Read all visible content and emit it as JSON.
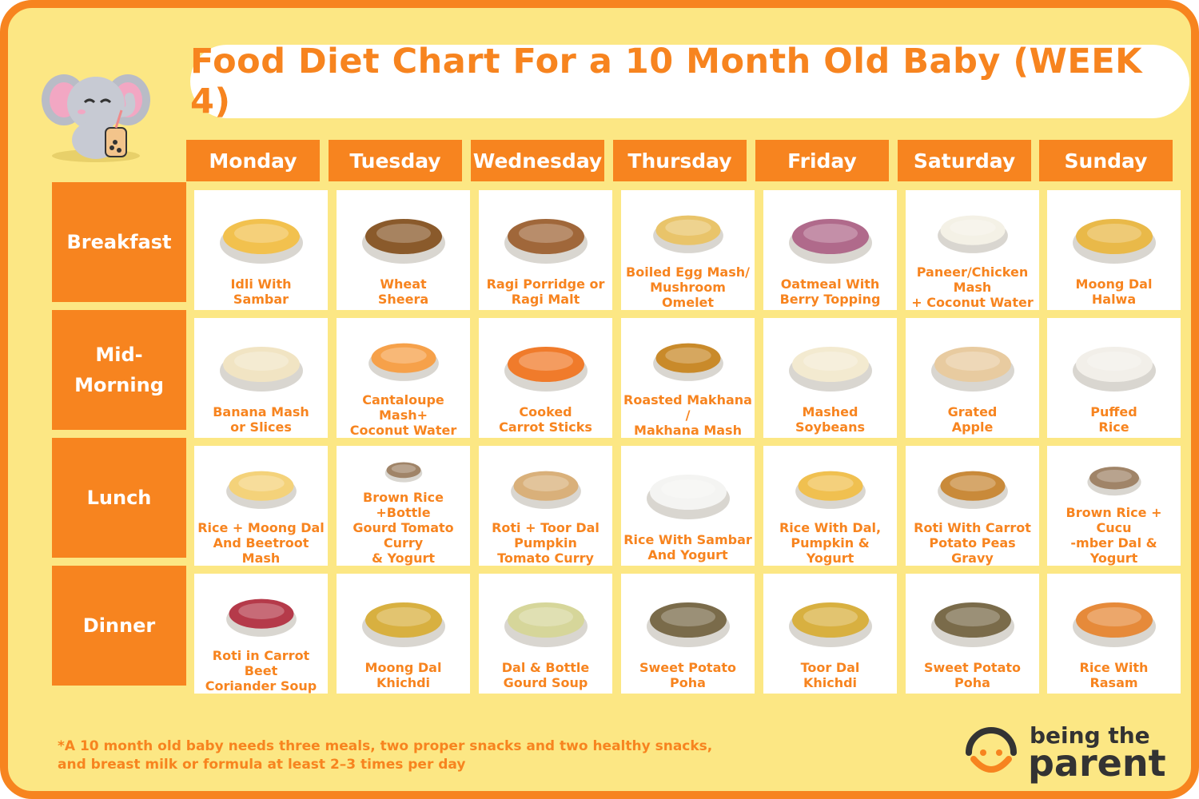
{
  "title": "Food Diet Chart For a 10 Month Old Baby (WEEK 4)",
  "colors": {
    "accent": "#f7841f",
    "background": "#fce784",
    "cell": "#ffffff"
  },
  "days": [
    "Monday",
    "Tuesday",
    "Wednesday",
    "Thursday",
    "Friday",
    "Saturday",
    "Sunday"
  ],
  "meals": [
    {
      "name": "Breakfast",
      "items": [
        "Idli With\nSambar",
        "Wheat\nSheera",
        "Ragi Porridge or\nRagi Malt",
        "Boiled Egg Mash/\nMushroom Omelet",
        "Oatmeal With\nBerry Topping",
        "Paneer/Chicken Mash\n+ Coconut Water",
        "Moong Dal\nHalwa"
      ]
    },
    {
      "name": "Mid-\nMorning",
      "items": [
        "Banana Mash\nor Slices",
        "Cantaloupe Mash+\nCoconut Water",
        "Cooked\nCarrot Sticks",
        "Roasted Makhana /\nMakhana Mash",
        "Mashed\nSoybeans",
        "Grated\nApple",
        "Puffed\nRice"
      ]
    },
    {
      "name": "Lunch",
      "items": [
        "Rice + Moong Dal\nAnd Beetroot Mash",
        "Brown Rice +Bottle\nGourd Tomato Curry\n& Yogurt",
        "Roti +  Toor Dal\nPumpkin\nTomato Curry",
        "Rice With Sambar\nAnd Yogurt",
        "Rice With Dal,\nPumpkin & Yogurt",
        "Roti With Carrot\nPotato Peas Gravy",
        "Brown Rice + Cucu\n-mber Dal & Yogurt"
      ]
    },
    {
      "name": "Dinner",
      "items": [
        "Roti in Carrot Beet\nCoriander Soup",
        "Moong Dal\nKhichdi",
        "Dal & Bottle\nGourd Soup",
        "Sweet Potato\nPoha",
        "Toor Dal\nKhichdi",
        "Sweet Potato\nPoha",
        "Rice With\nRasam"
      ]
    }
  ],
  "footnote": "*A 10 month old baby needs three meals, two proper snacks and two healthy snacks,\nand breast milk or formula at least 2–3 times per day",
  "logo": {
    "line1": "being the",
    "line2": "parent"
  }
}
